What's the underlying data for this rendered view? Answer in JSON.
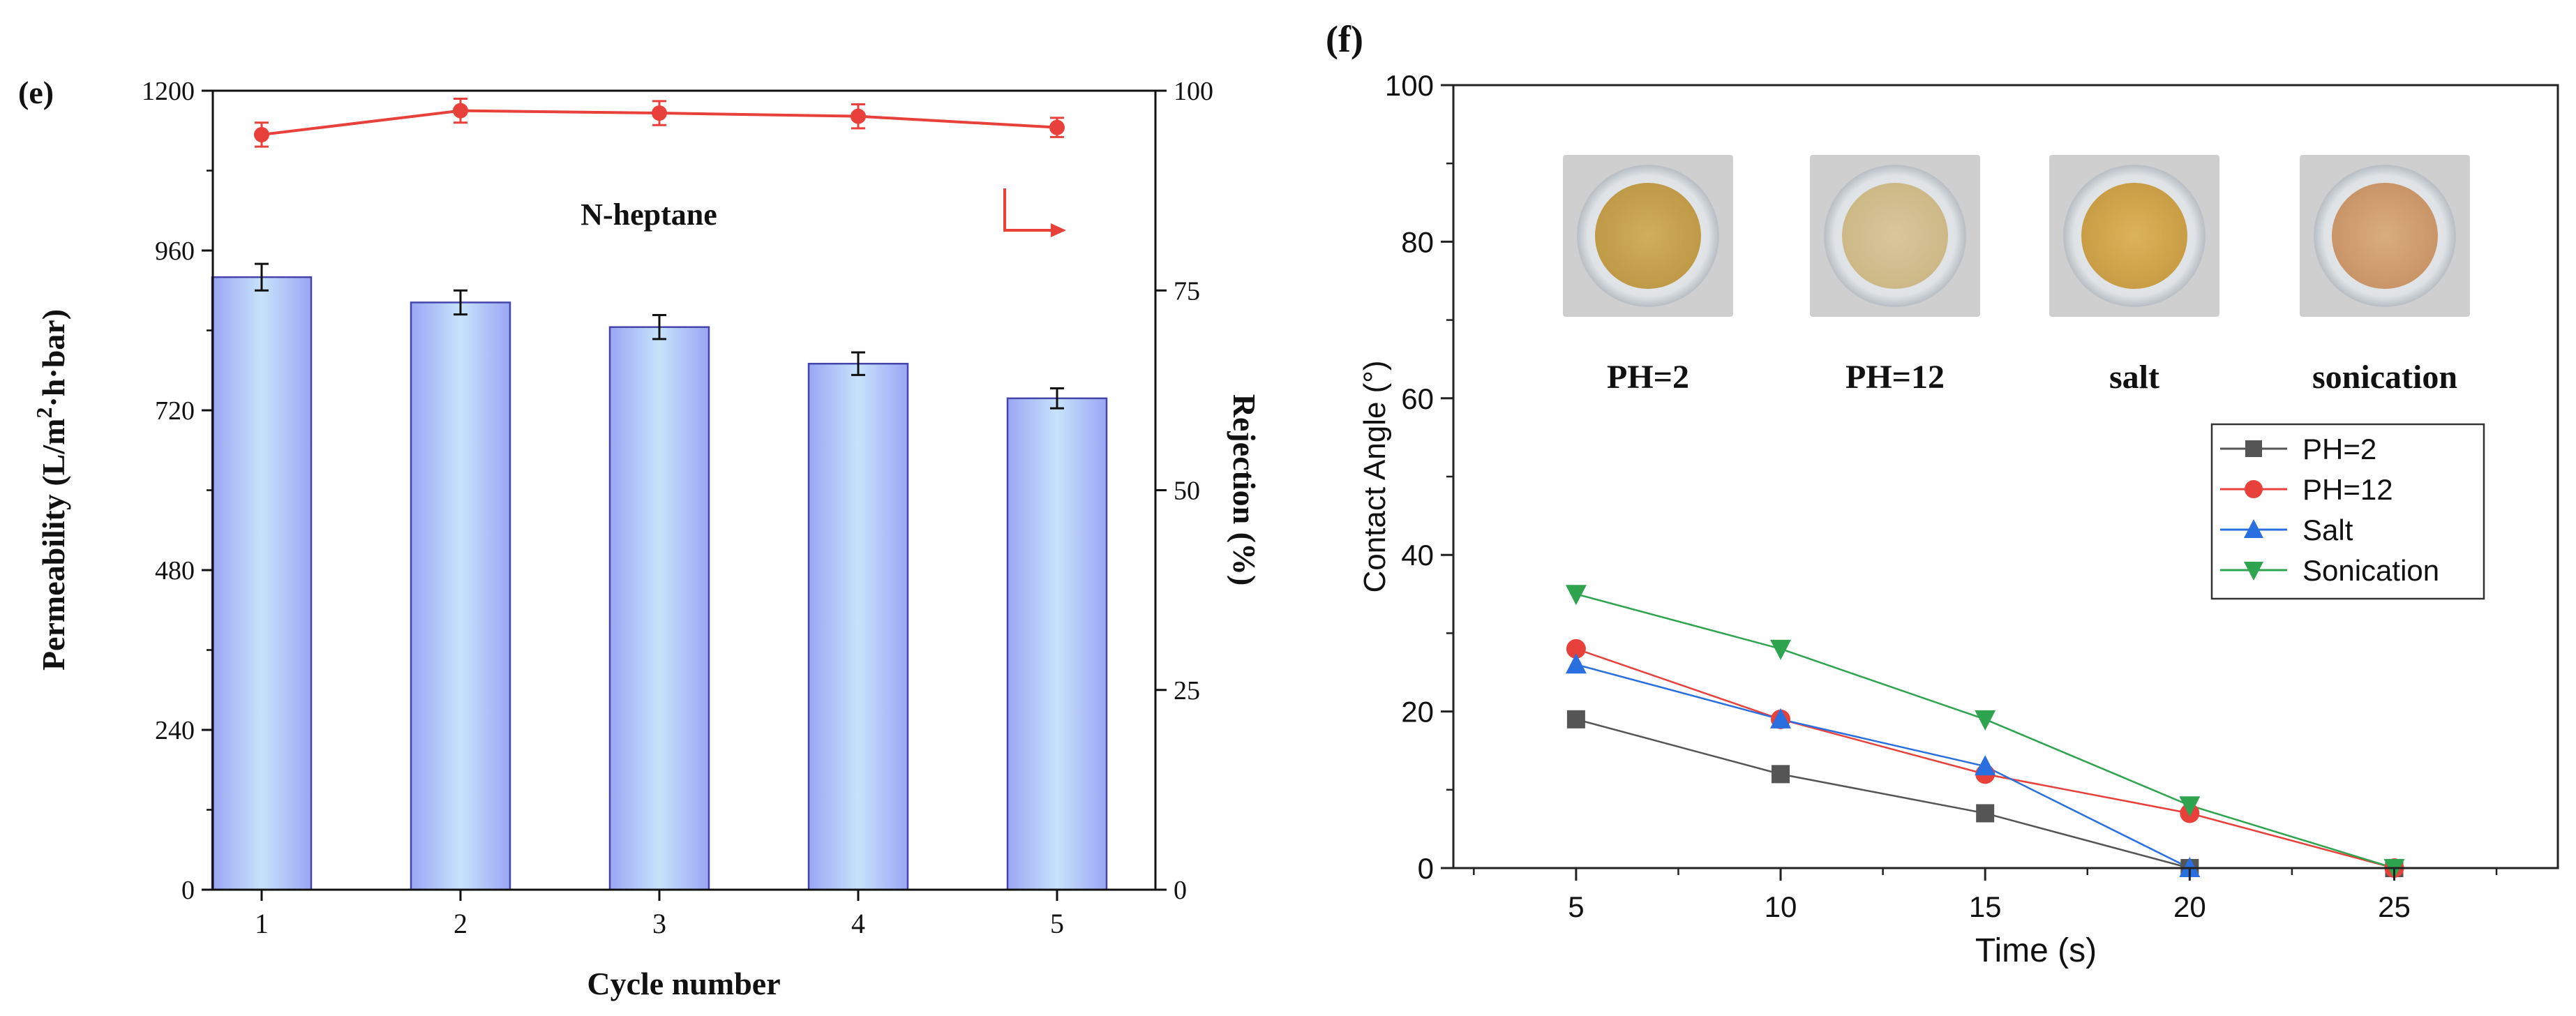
{
  "panel_e": {
    "label": "(e)",
    "annotation": "N-heptane",
    "left_axis": {
      "ylabel_main": "Permeability (L/m",
      "ylabel_sup": "2",
      "ylabel_tail": "·h·bar)"
    },
    "right_axis": {
      "ylabel": "Rejection (%)"
    }
  },
  "panel_f": {
    "label": "(f)",
    "photos": [
      {
        "label": "PH=2",
        "tint": "#c8a452"
      },
      {
        "label": "PH=12",
        "tint": "#d8c79a"
      },
      {
        "label": "salt",
        "tint": "#d4a94e"
      },
      {
        "label": "sonication",
        "tint": "#d2a070"
      }
    ]
  },
  "colors": {
    "bar_edge": "#4444aa",
    "rejection": "#e8403a",
    "series_ph2": "#555555",
    "series_ph12": "#e8403a",
    "series_salt": "#2a6fe0",
    "series_sonication": "#2ea44f"
  },
  "chart_data": [
    {
      "type": "bar",
      "title": "",
      "xlabel": "Cycle number",
      "ylabel": "Permeability (L/m2·h·bar)",
      "categories": [
        "1",
        "2",
        "3",
        "4",
        "5"
      ],
      "series": [
        {
          "name": "Permeability",
          "axis": "left",
          "values": [
            920,
            882,
            845,
            790,
            738
          ],
          "errors": [
            20,
            18,
            18,
            17,
            15
          ]
        },
        {
          "name": "Rejection",
          "axis": "right",
          "kind": "line",
          "values": [
            94.5,
            97.5,
            97.2,
            96.8,
            95.4
          ],
          "errors": [
            1.5,
            1.5,
            1.5,
            1.5,
            1.2
          ]
        }
      ],
      "ylim": [
        0,
        1200
      ],
      "yticks": [
        0,
        240,
        480,
        720,
        960,
        1200
      ],
      "y2label": "Rejection (%)",
      "y2lim": [
        0,
        100
      ],
      "y2ticks": [
        0,
        25,
        50,
        75,
        100
      ]
    },
    {
      "type": "line",
      "title": "",
      "xlabel": "Time (s)",
      "ylabel": "Contact Angle (°)",
      "x": [
        5,
        10,
        15,
        20,
        25
      ],
      "xlim": [
        2,
        29
      ],
      "xticks": [
        5,
        10,
        15,
        20,
        25
      ],
      "ylim": [
        0,
        100
      ],
      "yticks": [
        0,
        20,
        40,
        60,
        80,
        100
      ],
      "legend": "right",
      "series": [
        {
          "name": "PH=2",
          "marker": "square",
          "values": [
            19,
            12,
            7,
            0,
            0
          ]
        },
        {
          "name": "PH=12",
          "marker": "circle",
          "values": [
            28,
            19,
            12,
            7,
            0
          ]
        },
        {
          "name": "Salt",
          "marker": "triangle-up",
          "values": [
            26,
            19,
            13,
            0,
            null
          ]
        },
        {
          "name": "Sonication",
          "marker": "triangle-down",
          "values": [
            35,
            28,
            19,
            8,
            0
          ]
        }
      ]
    }
  ]
}
